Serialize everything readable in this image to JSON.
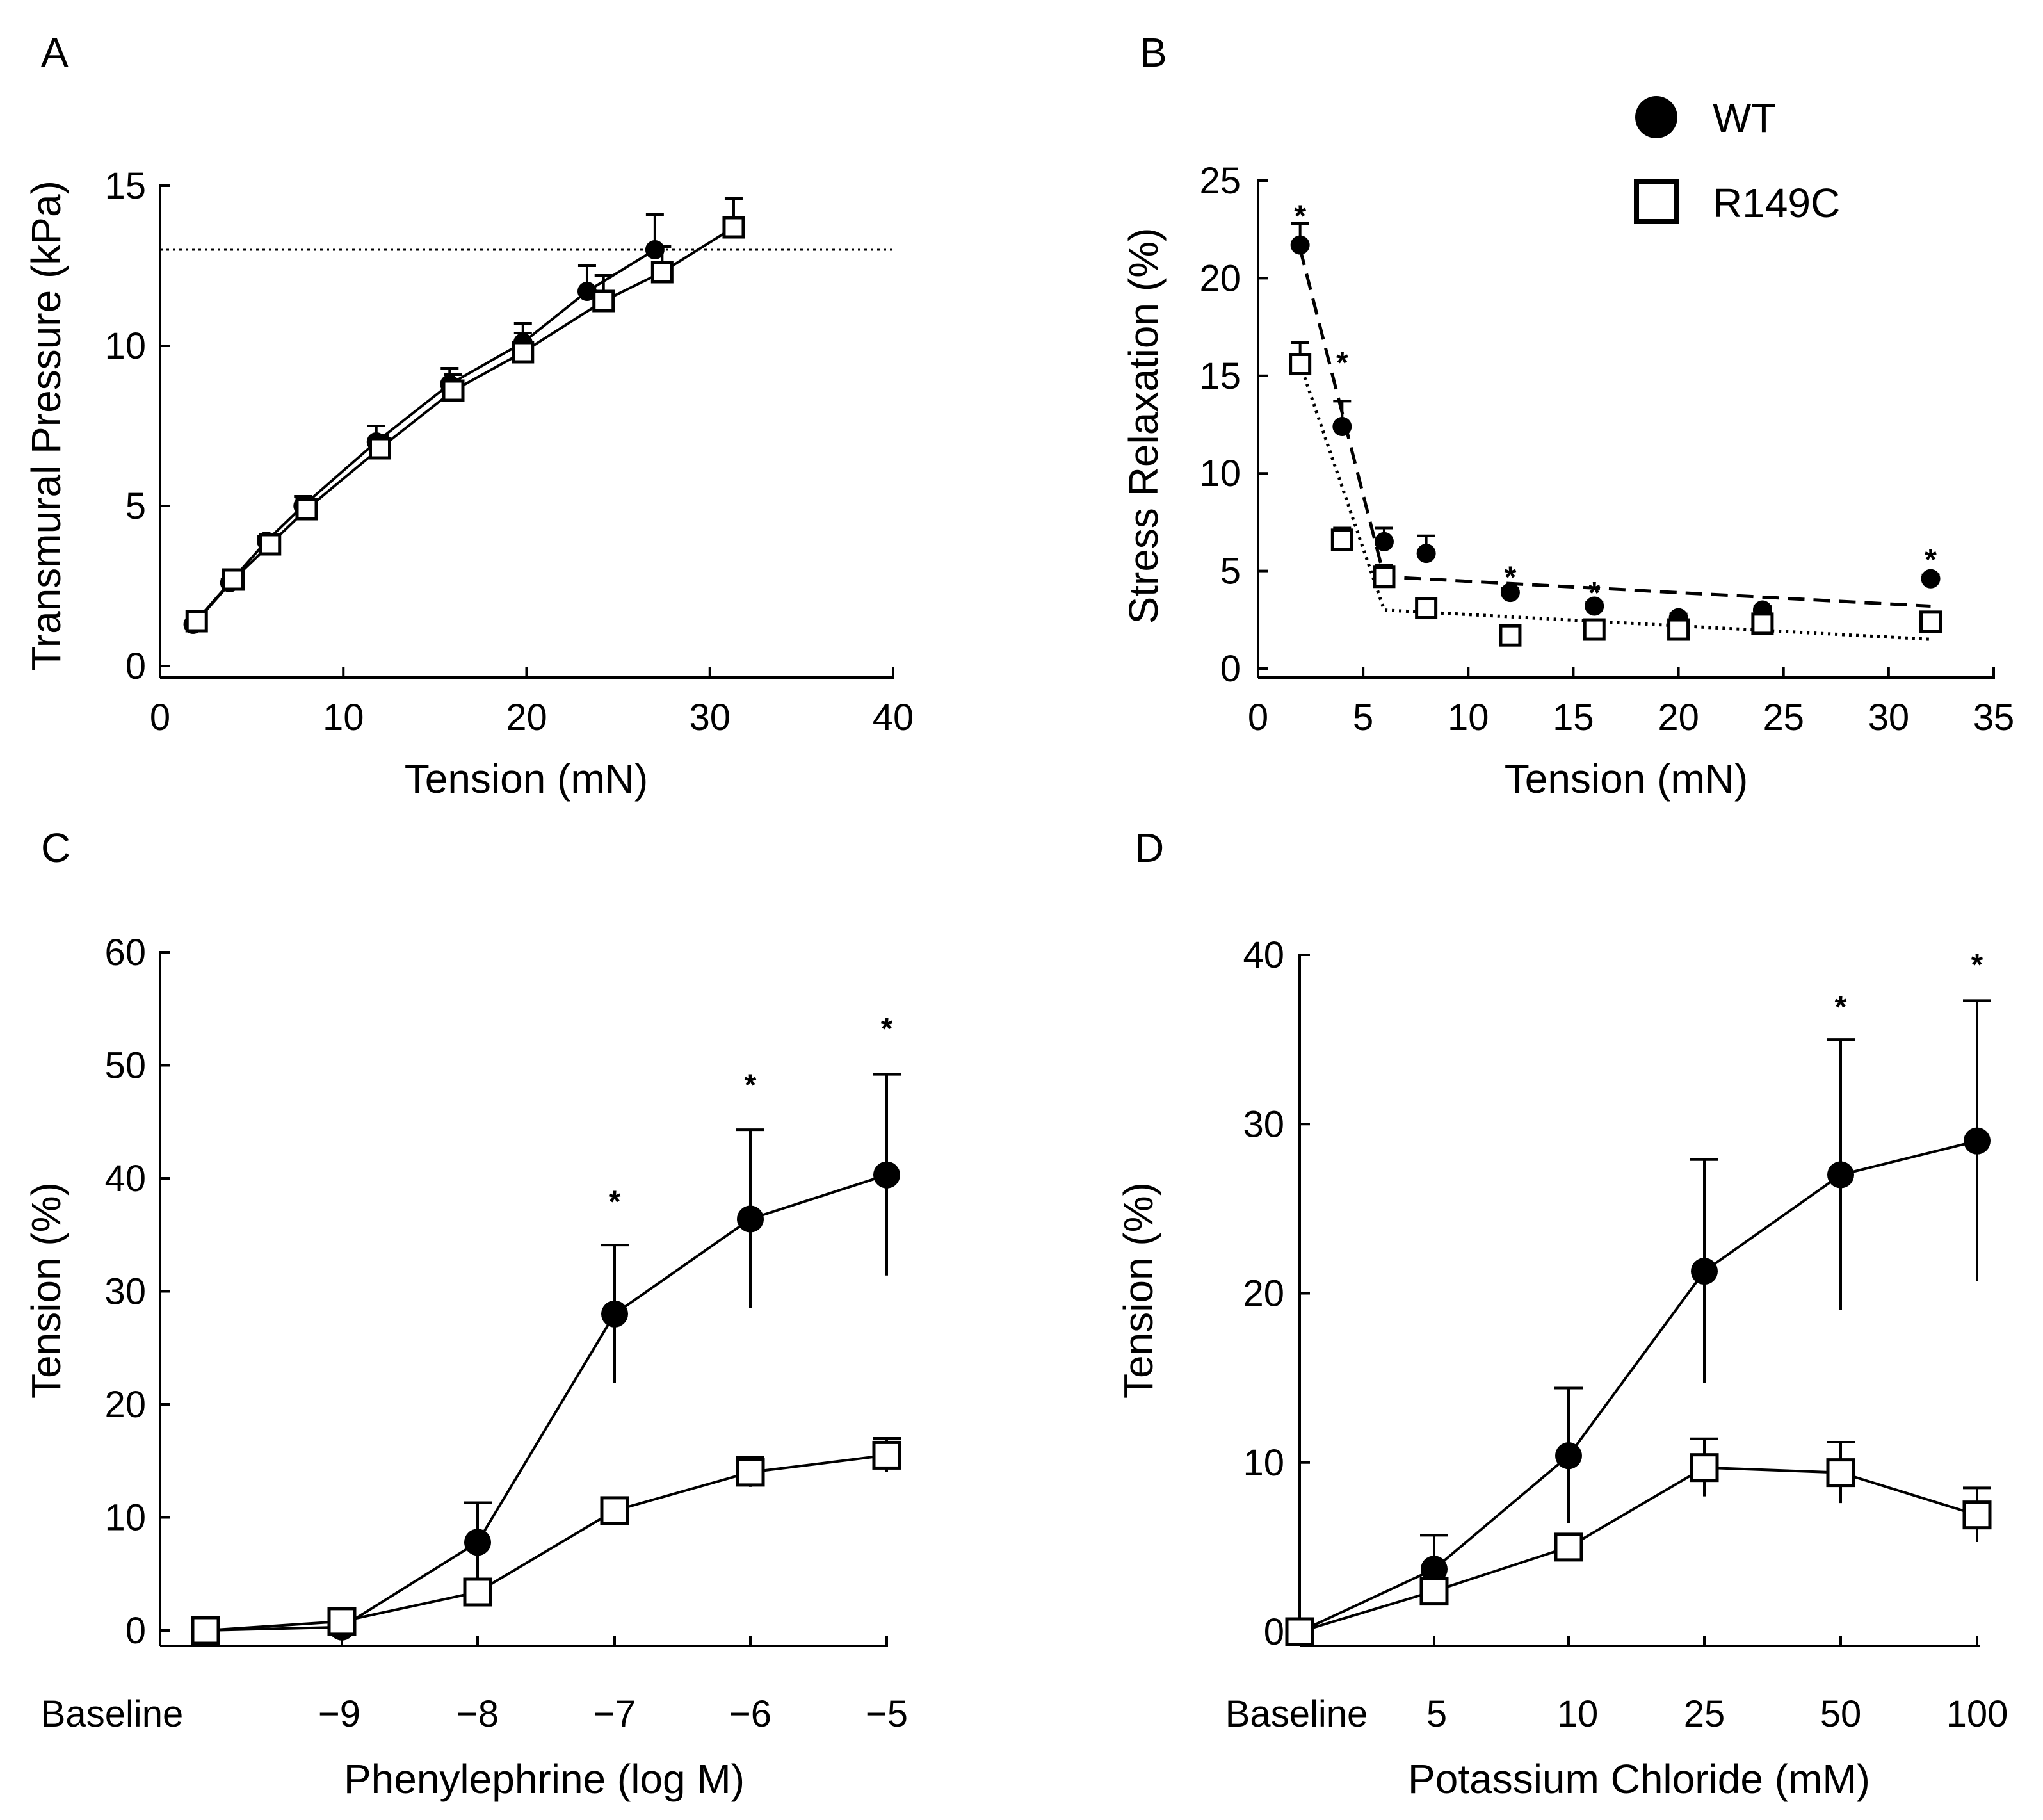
{
  "chart_data": [
    {
      "panel": "A",
      "type": "line",
      "title": "",
      "xlabel": "Tension (mN)",
      "ylabel": "Transmural Pressure (kPa)",
      "xlim": [
        0,
        40
      ],
      "ylim": [
        0,
        15
      ],
      "xticks": [
        0,
        10,
        20,
        30,
        40
      ],
      "yticks": [
        0,
        5,
        10,
        15
      ],
      "grid": false,
      "reference_line": {
        "y": 13,
        "style": "dotted"
      },
      "series": [
        {
          "name": "WT",
          "marker": "filled-circle",
          "line": "solid",
          "x": [
            1.8,
            3.8,
            5.8,
            7.8,
            11.8,
            15.8,
            19.8,
            23.3,
            27.0
          ],
          "y": [
            1.3,
            2.6,
            3.9,
            5.0,
            7.0,
            8.8,
            10.1,
            11.7,
            13.0
          ],
          "err": [
            0.1,
            0.1,
            0.15,
            0.3,
            0.5,
            0.5,
            0.6,
            0.8,
            1.1
          ]
        },
        {
          "name": "R149C",
          "marker": "open-square",
          "line": "solid",
          "x": [
            2.0,
            4.0,
            6.0,
            8.0,
            12.0,
            16.0,
            19.8,
            24.2,
            27.4,
            31.3
          ],
          "y": [
            1.4,
            2.7,
            3.8,
            4.9,
            6.8,
            8.6,
            9.8,
            11.4,
            12.3,
            13.7
          ],
          "err": [
            0.15,
            0.15,
            0.2,
            0.3,
            0.4,
            0.5,
            0.6,
            0.8,
            0.8,
            0.9
          ]
        }
      ]
    },
    {
      "panel": "B",
      "type": "scatter",
      "title": "",
      "xlabel": "Tension (mN)",
      "ylabel": "Stress Relaxation (%)",
      "xlim": [
        0,
        35
      ],
      "ylim": [
        0,
        25
      ],
      "xticks": [
        0,
        5,
        10,
        15,
        20,
        25,
        30,
        35
      ],
      "yticks": [
        0,
        5,
        10,
        15,
        20,
        25
      ],
      "grid": false,
      "legend": {
        "position": "top-right",
        "entries": [
          "WT",
          "R149C"
        ]
      },
      "series": [
        {
          "name": "WT",
          "marker": "filled-circle",
          "x": [
            2,
            4,
            6,
            8,
            12,
            16,
            20,
            24,
            32
          ],
          "y": [
            21.7,
            12.4,
            6.5,
            5.9,
            3.9,
            3.2,
            2.6,
            3.0,
            4.6
          ],
          "err": [
            1.1,
            1.3,
            0.7,
            0.9,
            0.2,
            0.2,
            0.2,
            0.2,
            0.2
          ],
          "fit": {
            "style": "dashed",
            "points": [
              [
                2,
                21.5
              ],
              [
                6,
                4.7
              ],
              [
                32,
                3.2
              ]
            ]
          }
        },
        {
          "name": "R149C",
          "marker": "open-square",
          "x": [
            2,
            4,
            6,
            8,
            12,
            16,
            20,
            24,
            32
          ],
          "y": [
            15.6,
            6.6,
            4.7,
            3.1,
            1.7,
            2.0,
            2.0,
            2.3,
            2.4
          ],
          "err": [
            1.1,
            0.6,
            0.6,
            0.3,
            0.2,
            0.2,
            0.2,
            0.2,
            0.2
          ],
          "fit": {
            "style": "dotted",
            "points": [
              [
                2,
                15.6
              ],
              [
                6,
                3.0
              ],
              [
                32,
                1.5
              ]
            ]
          }
        }
      ],
      "significance": [
        {
          "x": 2,
          "y": 23.5
        },
        {
          "x": 4,
          "y": 16.0
        },
        {
          "x": 12,
          "y": 5.0
        },
        {
          "x": 16,
          "y": 4.2
        },
        {
          "x": 32,
          "y": 5.9
        }
      ]
    },
    {
      "panel": "C",
      "type": "line",
      "title": "",
      "xlabel": "Phenylephrine (log M)",
      "ylabel": "Tension (%)",
      "categories": [
        "Baseline",
        "−9",
        "−8",
        "−7",
        "−6",
        "−5"
      ],
      "ylim": [
        0,
        60
      ],
      "yticks": [
        0,
        10,
        20,
        30,
        40,
        50,
        60
      ],
      "grid": false,
      "series": [
        {
          "name": "WT",
          "marker": "filled-circle",
          "values": [
            0,
            0.3,
            7.8,
            28.0,
            36.4,
            40.3
          ],
          "err": [
            0,
            0.3,
            3.5,
            6.1,
            7.9,
            8.9
          ]
        },
        {
          "name": "R149C",
          "marker": "open-square",
          "values": [
            0,
            0.8,
            3.4,
            10.6,
            14.0,
            15.5
          ],
          "err": [
            0,
            0.5,
            0.5,
            0.7,
            1.3,
            1.5
          ]
        }
      ],
      "significance": [
        {
          "category": "−7",
          "y": 38.5
        },
        {
          "category": "−6",
          "y": 48.8
        },
        {
          "category": "−5",
          "y": 53.8
        }
      ]
    },
    {
      "panel": "D",
      "type": "line",
      "title": "",
      "xlabel": "Potassium Chloride (mM)",
      "ylabel": "Tension (%)",
      "categories": [
        "Baseline",
        "5",
        "10",
        "25",
        "50",
        "100"
      ],
      "ylim": [
        0,
        40
      ],
      "yticks": [
        0,
        10,
        20,
        30,
        40
      ],
      "grid": false,
      "series": [
        {
          "name": "WT",
          "marker": "filled-circle",
          "values": [
            0,
            3.7,
            10.4,
            21.3,
            27.0,
            29.0
          ],
          "err": [
            0,
            2.0,
            4.0,
            6.6,
            8.0,
            8.3
          ]
        },
        {
          "name": "R149C",
          "marker": "open-square",
          "values": [
            0,
            2.4,
            5.0,
            9.7,
            9.4,
            6.9
          ],
          "err": [
            0,
            0.7,
            0.5,
            1.7,
            1.8,
            1.6
          ]
        }
      ],
      "significance": [
        {
          "category": "50",
          "y": 37.3
        },
        {
          "category": "100",
          "y": 39.8
        }
      ]
    }
  ],
  "panels": {
    "A": {
      "letter": "A"
    },
    "B": {
      "letter": "B"
    },
    "C": {
      "letter": "C"
    },
    "D": {
      "letter": "D"
    }
  },
  "legend": {
    "wt_label": "WT",
    "r149c_label": "R149C"
  },
  "significance_marker": "*",
  "colors": {
    "ink": "#000000",
    "marker_fill_open": "#ffffff",
    "background": "#ffffff"
  }
}
